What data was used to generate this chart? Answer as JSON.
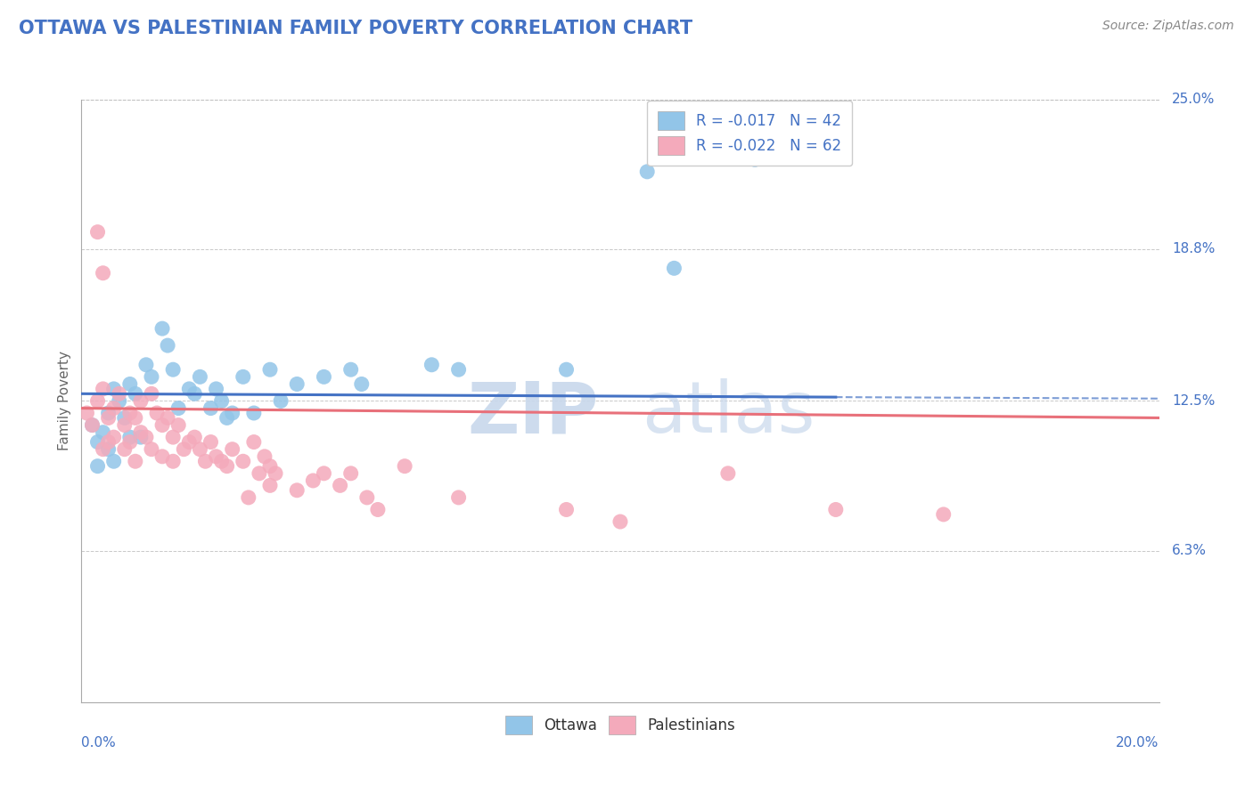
{
  "title": "OTTAWA VS PALESTINIAN FAMILY POVERTY CORRELATION CHART",
  "source_text": "Source: ZipAtlas.com",
  "ylabel": "Family Poverty",
  "xlim": [
    0.0,
    20.0
  ],
  "ylim": [
    0.0,
    25.0
  ],
  "y_tick_labels_right": [
    "6.3%",
    "12.5%",
    "18.8%",
    "25.0%"
  ],
  "y_tick_values_right": [
    6.3,
    12.5,
    18.8,
    25.0
  ],
  "legend_r": [
    -0.017,
    -0.022
  ],
  "legend_n": [
    42,
    62
  ],
  "ottawa_color": "#92C5E8",
  "palestinian_color": "#F4AABB",
  "ottawa_line_color": "#4472C4",
  "palestinian_line_color": "#E8707A",
  "watermark_zip": "ZIP",
  "watermark_atlas": "atlas",
  "background_color": "#FFFFFF",
  "grid_color": "#BBBBBB",
  "title_color": "#4472C4",
  "ottawa_scatter_x": [
    0.2,
    0.3,
    0.4,
    0.5,
    0.5,
    0.6,
    0.7,
    0.8,
    0.9,
    1.0,
    1.1,
    1.2,
    1.3,
    1.5,
    1.6,
    1.7,
    1.8,
    2.0,
    2.1,
    2.2,
    2.4,
    2.5,
    2.6,
    2.7,
    2.8,
    3.0,
    3.2,
    3.5,
    3.7,
    4.0,
    4.5,
    5.0,
    5.2,
    6.5,
    7.0,
    9.0,
    10.5,
    11.0,
    12.5,
    0.3,
    0.6,
    0.9
  ],
  "ottawa_scatter_y": [
    11.5,
    10.8,
    11.2,
    12.0,
    10.5,
    13.0,
    12.5,
    11.8,
    13.2,
    12.8,
    11.0,
    14.0,
    13.5,
    15.5,
    14.8,
    13.8,
    12.2,
    13.0,
    12.8,
    13.5,
    12.2,
    13.0,
    12.5,
    11.8,
    12.0,
    13.5,
    12.0,
    13.8,
    12.5,
    13.2,
    13.5,
    13.8,
    13.2,
    14.0,
    13.8,
    13.8,
    22.0,
    18.0,
    22.5,
    9.8,
    10.0,
    11.0
  ],
  "palestinian_scatter_x": [
    0.1,
    0.2,
    0.3,
    0.4,
    0.4,
    0.5,
    0.5,
    0.6,
    0.6,
    0.7,
    0.8,
    0.8,
    0.9,
    0.9,
    1.0,
    1.0,
    1.1,
    1.1,
    1.2,
    1.3,
    1.3,
    1.4,
    1.5,
    1.5,
    1.6,
    1.7,
    1.7,
    1.8,
    1.9,
    2.0,
    2.1,
    2.2,
    2.3,
    2.4,
    2.5,
    2.6,
    2.7,
    2.8,
    3.0,
    3.2,
    3.3,
    3.4,
    3.5,
    3.5,
    3.6,
    4.0,
    4.3,
    4.5,
    4.8,
    5.0,
    5.3,
    5.5,
    6.0,
    7.0,
    9.0,
    10.0,
    12.0,
    14.0,
    16.0,
    3.1,
    0.3,
    0.4
  ],
  "palestinian_scatter_y": [
    12.0,
    11.5,
    12.5,
    10.5,
    13.0,
    11.8,
    10.8,
    12.2,
    11.0,
    12.8,
    11.5,
    10.5,
    12.0,
    10.8,
    11.8,
    10.0,
    12.5,
    11.2,
    11.0,
    12.8,
    10.5,
    12.0,
    11.5,
    10.2,
    11.8,
    11.0,
    10.0,
    11.5,
    10.5,
    10.8,
    11.0,
    10.5,
    10.0,
    10.8,
    10.2,
    10.0,
    9.8,
    10.5,
    10.0,
    10.8,
    9.5,
    10.2,
    9.8,
    9.0,
    9.5,
    8.8,
    9.2,
    9.5,
    9.0,
    9.5,
    8.5,
    8.0,
    9.8,
    8.5,
    8.0,
    7.5,
    9.5,
    8.0,
    7.8,
    8.5,
    19.5,
    17.8
  ]
}
